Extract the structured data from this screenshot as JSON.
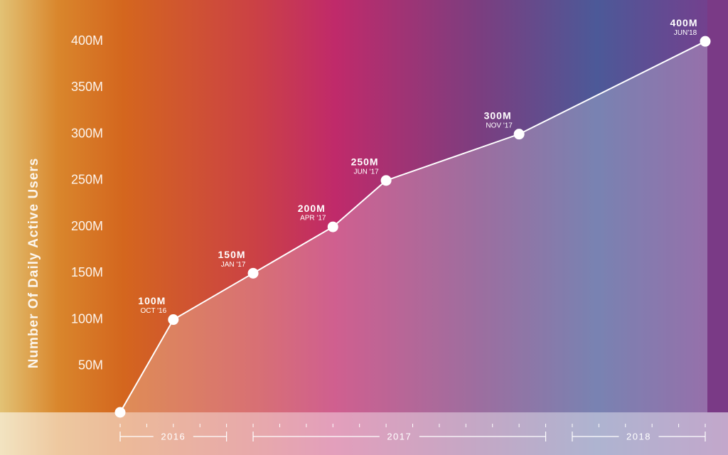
{
  "chart_data": {
    "type": "line",
    "y_label": "Number Of Daily Active Users",
    "x": [
      "2016-08",
      "2016-10",
      "2017-01",
      "2017-04",
      "2017-06",
      "2017-11",
      "2018-06"
    ],
    "values": [
      0,
      100,
      150,
      200,
      250,
      300,
      400
    ],
    "value_labels": [
      null,
      "100M",
      "150M",
      "200M",
      "250M",
      "300M",
      "400M"
    ],
    "date_labels": [
      null,
      "OCT '16",
      "JAN '17",
      "APR '17",
      "JUN '17",
      "NOV '17",
      "JUN'18"
    ],
    "color": "#ffffff",
    "xlim": [
      "2016-08",
      "2018-06"
    ],
    "xticks": [
      "2016-08",
      "2016-09",
      "2016-10",
      "2016-11",
      "2016-12",
      "2017-01",
      "2017-02",
      "2017-03",
      "2017-04",
      "2017-05",
      "2017-06",
      "2017-07",
      "2017-08",
      "2017-09",
      "2017-10",
      "2017-11",
      "2017-12",
      "2018-01",
      "2018-02",
      "2018-03",
      "2018-04",
      "2018-05",
      "2018-06"
    ],
    "year_spans": [
      {
        "label": "2016",
        "from": "2016-08",
        "to": "2016-12"
      },
      {
        "label": "2017",
        "from": "2017-01",
        "to": "2017-12"
      },
      {
        "label": "2018",
        "from": "2018-01",
        "to": "2018-06"
      }
    ],
    "ylim": [
      0,
      440
    ],
    "yticks": [
      {
        "value": 50,
        "label": "50M"
      },
      {
        "value": 100,
        "label": "100M"
      },
      {
        "value": 150,
        "label": "150M"
      },
      {
        "value": 200,
        "label": "200M"
      },
      {
        "value": 250,
        "label": "250M"
      },
      {
        "value": 300,
        "label": "300M"
      },
      {
        "value": 350,
        "label": "350M"
      },
      {
        "value": 400,
        "label": "400M"
      }
    ],
    "grid": false
  }
}
